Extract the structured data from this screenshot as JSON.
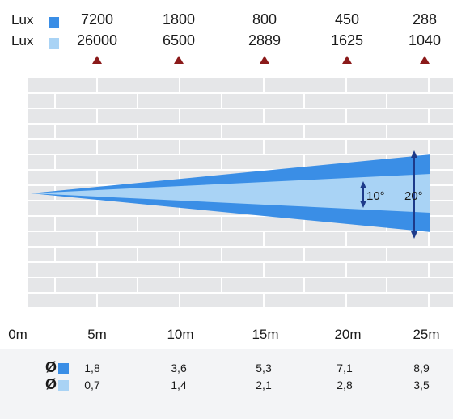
{
  "lux_rows": [
    {
      "label": "Lux",
      "swatch_color": "#3a8ee6",
      "values": [
        "7200",
        "1800",
        "800",
        "450",
        "288"
      ]
    },
    {
      "label": "Lux",
      "swatch_color": "#a9d3f5",
      "values": [
        "26000",
        "6500",
        "2889",
        "1625",
        "1040"
      ]
    }
  ],
  "distances": [
    "0m",
    "5m",
    "10m",
    "15m",
    "20m",
    "25m"
  ],
  "diameter_rows": [
    {
      "symbol": "Ø",
      "swatch_color": "#3a8ee6",
      "values": [
        "1,8",
        "3,6",
        "5,3",
        "7,1",
        "8,9"
      ]
    },
    {
      "symbol": "Ø",
      "swatch_color": "#a9d3f5",
      "values": [
        "0,7",
        "1,4",
        "2,1",
        "2,8",
        "3,5"
      ]
    }
  ],
  "beam": {
    "narrow_angle": "10°",
    "wide_angle": "20°",
    "narrow_deg": 10,
    "wide_deg": 20,
    "wide_color": "#3a8ee6",
    "narrow_color": "#a9d3f5",
    "arrow_color": "#1d3a8a",
    "grid_bg": "#e5e6e8",
    "grid_line": "#ffffff"
  },
  "marker_color": "#8b1a1a"
}
